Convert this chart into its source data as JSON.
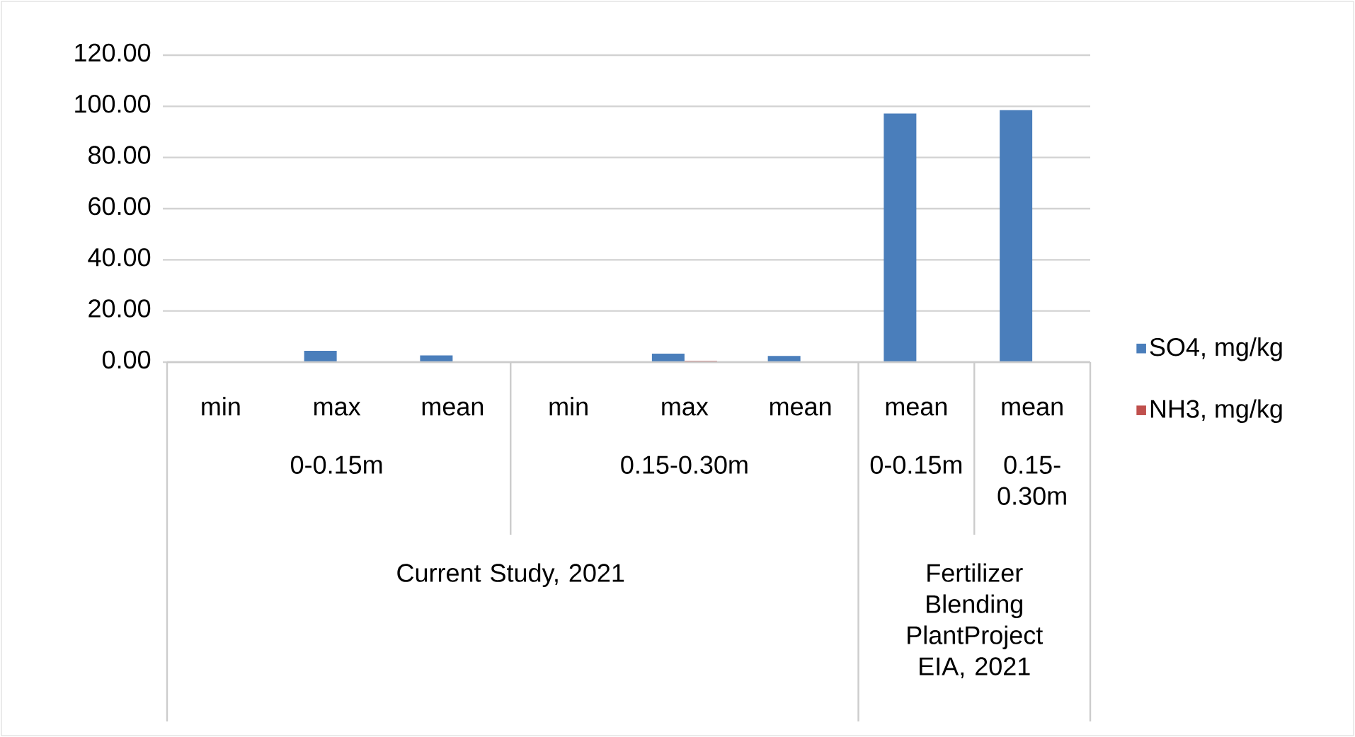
{
  "chart_data": {
    "type": "bar",
    "categories": [
      "min",
      "max",
      "mean",
      "min",
      "max",
      "mean",
      "mean",
      "mean"
    ],
    "series": [
      {
        "name": "SO4, mg/kg",
        "color": "#4a7ebb",
        "values": [
          0,
          4.4,
          2.6,
          0,
          3.3,
          2.4,
          97.2,
          98.5
        ]
      },
      {
        "name": "NH3, mg/kg",
        "color": "#c0504d",
        "values": [
          0,
          0,
          0,
          0,
          0.5,
          0,
          0,
          0
        ]
      }
    ],
    "ylim": [
      0,
      120
    ],
    "yticks": [
      {
        "value": 0,
        "label": "0.00"
      },
      {
        "value": 20,
        "label": "20.00"
      },
      {
        "value": 40,
        "label": "40.00"
      },
      {
        "value": 60,
        "label": "60.00"
      },
      {
        "value": 80,
        "label": "80.00"
      },
      {
        "value": 100,
        "label": "100.00"
      },
      {
        "value": 120,
        "label": "120.00"
      }
    ],
    "grid": "y",
    "legend": "right",
    "annotations": [
      "0-0.15m",
      "0.15-0.30m",
      "0-0.15m",
      "0.15-0.30m",
      "Current Study, 2021",
      "Fertilizer Blending PlantProject EIA, 2021"
    ]
  }
}
